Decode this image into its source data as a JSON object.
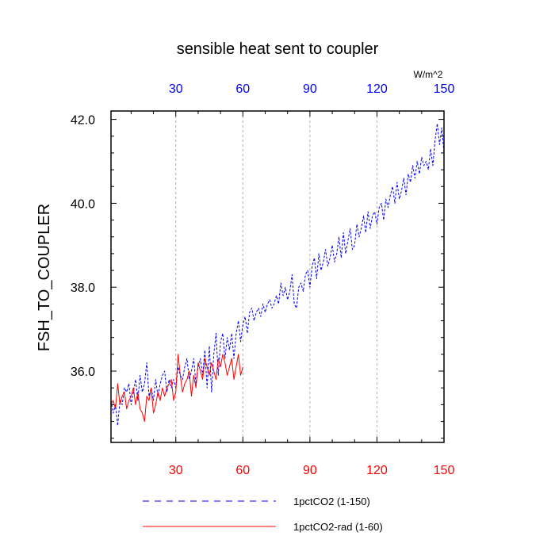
{
  "chart_data": {
    "type": "line",
    "title": "sensible heat sent to coupler",
    "units": "W/m^2",
    "ylabel": "FSH_TO_COUPLER",
    "xlabel": "",
    "xlim": [
      1,
      150
    ],
    "ylim": [
      34.3,
      42.2
    ],
    "xticks": [
      30,
      60,
      90,
      120,
      150
    ],
    "yticks": [
      36.0,
      38.0,
      40.0,
      42.0
    ],
    "ytick_labels": [
      "36.0",
      "38.0",
      "40.0",
      "42.0"
    ],
    "xgrid": true,
    "ygrid": false,
    "top_axis_color": "#0000ff",
    "bottom_axis_color": "#ff0000",
    "legend_position": "bottom",
    "series": [
      {
        "name": "1pctCO2 (1-150)",
        "color": "#0000ff",
        "style": "dashed",
        "x_start": 1,
        "values": [
          35.3,
          35.0,
          35.2,
          34.7,
          35.3,
          35.2,
          35.6,
          35.5,
          35.7,
          35.2,
          35.5,
          35.8,
          35.3,
          35.9,
          35.5,
          35.7,
          36.2,
          35.4,
          35.6,
          35.3,
          35.8,
          35.4,
          35.7,
          35.9,
          36.0,
          35.5,
          35.8,
          35.6,
          35.8,
          35.6,
          36.1,
          35.9,
          35.8,
          36.1,
          36.3,
          35.8,
          36.0,
          36.3,
          35.7,
          36.1,
          36.3,
          35.9,
          36.5,
          35.6,
          36.6,
          35.5,
          36.4,
          36.9,
          35.9,
          36.7,
          36.9,
          36.3,
          36.8,
          36.5,
          36.9,
          36.3,
          36.9,
          37.2,
          36.7,
          37.1,
          37.3,
          36.9,
          37.4,
          37.5,
          37.2,
          37.4,
          37.5,
          37.3,
          37.6,
          37.4,
          37.6,
          37.7,
          37.5,
          37.6,
          37.8,
          37.6,
          38.1,
          37.8,
          38.0,
          37.7,
          37.9,
          38.3,
          37.6,
          37.5,
          38.0,
          38.1,
          37.9,
          38.3,
          38.4,
          38.0,
          38.5,
          38.7,
          38.2,
          38.8,
          38.4,
          38.6,
          38.9,
          38.5,
          38.7,
          39.0,
          38.6,
          38.8,
          39.2,
          38.7,
          39.3,
          38.8,
          39.1,
          39.4,
          38.9,
          39.0,
          39.5,
          39.2,
          39.4,
          39.7,
          39.3,
          39.8,
          39.4,
          39.7,
          39.8,
          39.5,
          39.9,
          40.0,
          39.6,
          40.1,
          39.9,
          40.2,
          40.4,
          40.0,
          40.5,
          40.1,
          40.3,
          40.6,
          40.2,
          40.7,
          40.5,
          40.9,
          40.6,
          41.0,
          40.7,
          41.1,
          40.9,
          41.0,
          40.8,
          41.3,
          40.9,
          41.5,
          41.9,
          41.4,
          41.8,
          41.2
        ]
      },
      {
        "name": "1pctCO2-rad (1-60)",
        "color": "#ff0000",
        "style": "solid",
        "x_start": 1,
        "values": [
          35.2,
          35.3,
          35.1,
          35.7,
          35.2,
          35.4,
          35.5,
          35.1,
          35.3,
          35.4,
          35.6,
          35.2,
          35.5,
          35.1,
          35.0,
          34.8,
          35.4,
          35.3,
          35.6,
          35.0,
          35.2,
          35.5,
          35.3,
          35.6,
          35.4,
          35.6,
          35.7,
          35.8,
          35.3,
          35.5,
          36.4,
          35.9,
          35.5,
          35.7,
          35.8,
          36.0,
          35.4,
          35.9,
          35.6,
          36.2,
          36.0,
          35.8,
          36.3,
          36.1,
          35.9,
          36.2,
          36.0,
          35.8,
          36.3,
          36.1,
          36.4,
          36.2,
          35.9,
          36.1,
          36.3,
          35.8,
          36.1,
          36.4,
          35.9,
          36.1
        ]
      }
    ]
  }
}
